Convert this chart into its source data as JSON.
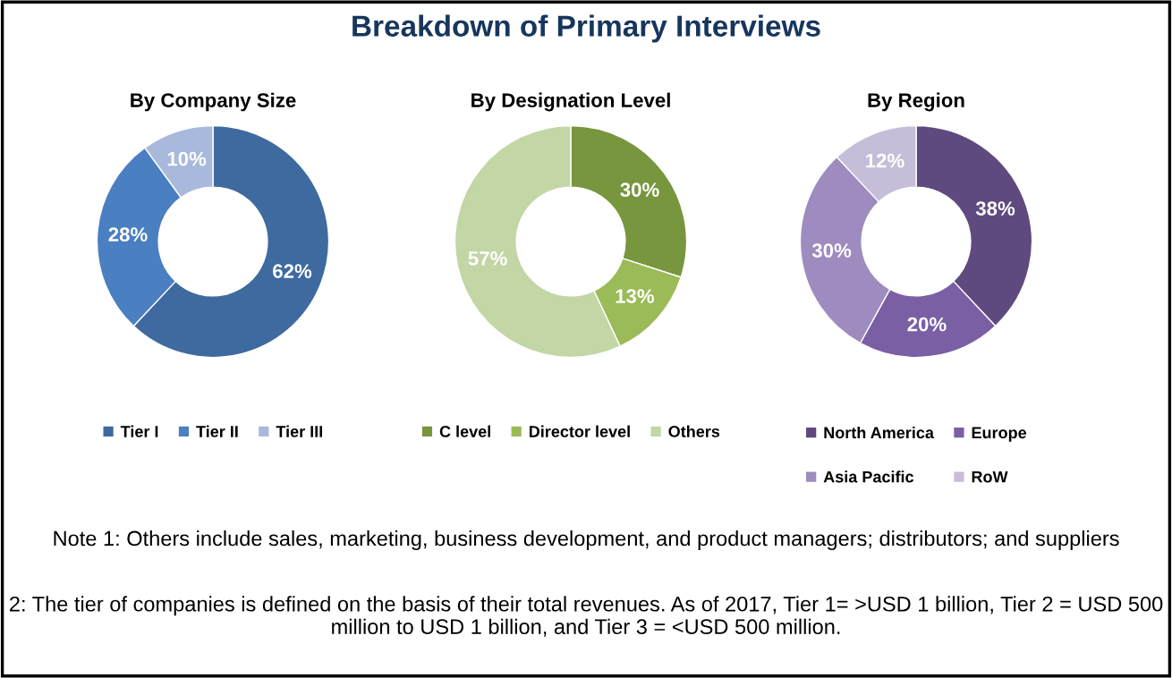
{
  "chart_data": [
    {
      "type": "donut",
      "title": "By Company Size",
      "categories": [
        "Tier I",
        "Tier II",
        "Tier III"
      ],
      "values": [
        62,
        28,
        10
      ],
      "value_labels": [
        "62%",
        "28%",
        "10%"
      ],
      "colors": [
        "#3e6aa0",
        "#4a7fc1",
        "#a9b9dc"
      ],
      "legend": "bottom",
      "annotations": [
        "Breakdown of Primary Interviews",
        "Note 1: Others include sales, marketing, business development, and product managers; distributors; and suppliers",
        "2: The tier of companies is defined on the basis of their total revenues. As of 2017, Tier 1= >USD 1 billion, Tier 2 = USD 500 million to USD 1 billion, and Tier 3 = <USD 500 million."
      ]
    },
    {
      "type": "donut",
      "title": "By Designation Level",
      "categories": [
        "C level",
        "Director level",
        "Others"
      ],
      "values": [
        30,
        13,
        57
      ],
      "value_labels": [
        "30%",
        "13%",
        "57%"
      ],
      "colors": [
        "#77963d",
        "#9bbb59",
        "#c3d6a5"
      ],
      "legend": "bottom"
    },
    {
      "type": "donut",
      "title": "By Region",
      "categories": [
        "North America",
        "Europe",
        "Asia Pacific",
        "RoW"
      ],
      "values": [
        38,
        20,
        30,
        12
      ],
      "value_labels": [
        "38%",
        "20%",
        "30%",
        "12%"
      ],
      "colors": [
        "#5f4a7f",
        "#7a5fa5",
        "#9e8bbf",
        "#c6bdd8"
      ],
      "legend": "bottom"
    }
  ]
}
